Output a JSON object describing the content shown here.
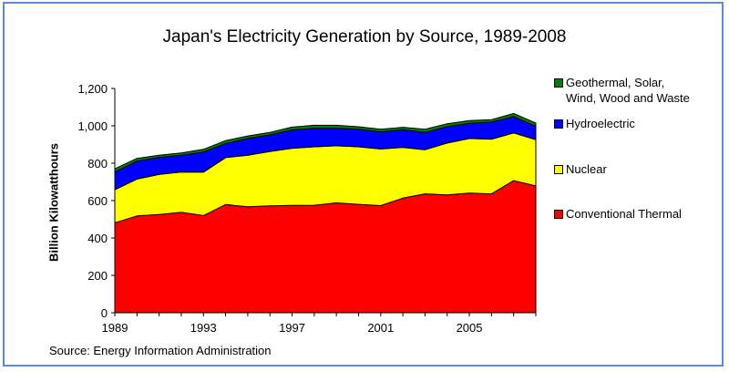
{
  "frame_color": "#5b8bd0",
  "chart_data": {
    "type": "area",
    "stacked": true,
    "title": "Japan's Electricity Generation by Source, 1989-2008",
    "xlabel": "",
    "ylabel": "Billion Kilowatthours",
    "source": "Source: Energy Information Administration",
    "x": [
      1989,
      1990,
      1991,
      1992,
      1993,
      1994,
      1995,
      1996,
      1997,
      1998,
      1999,
      2000,
      2001,
      2002,
      2003,
      2004,
      2005,
      2006,
      2007,
      2008
    ],
    "xlim": [
      1989,
      2008
    ],
    "xticks": [
      1989,
      1990,
      1991,
      1992,
      1993,
      1994,
      1995,
      1996,
      1997,
      1998,
      1999,
      2000,
      2001,
      2002,
      2003,
      2004,
      2005,
      2006,
      2007,
      2008
    ],
    "xtick_labels": [
      "1989",
      "1993",
      "1997",
      "2001",
      "2005"
    ],
    "xtick_label_years": [
      1989,
      1993,
      1997,
      2001,
      2005
    ],
    "ylim": [
      0,
      1200
    ],
    "yticks": [
      0,
      200,
      400,
      600,
      800,
      1000,
      1200
    ],
    "ytick_labels": [
      "0",
      "200",
      "400",
      "600",
      "800",
      "1,000",
      "1,200"
    ],
    "grid": false,
    "legend_position": "right",
    "series": [
      {
        "name": "Conventional Thermal",
        "color": "#ff0000",
        "values": [
          481,
          518,
          526,
          537,
          520,
          579,
          567,
          572,
          574,
          575,
          588,
          580,
          573,
          613,
          636,
          630,
          640,
          636,
          707,
          679
        ]
      },
      {
        "name": "Nuclear",
        "color": "#ffff00",
        "values": [
          177,
          197,
          214,
          216,
          232,
          251,
          276,
          291,
          306,
          313,
          305,
          308,
          303,
          272,
          236,
          278,
          292,
          293,
          255,
          247
        ]
      },
      {
        "name": "Hydroelectric",
        "color": "#0000ff",
        "values": [
          94,
          96,
          91,
          89,
          108,
          75,
          89,
          88,
          98,
          99,
          94,
          94,
          92,
          94,
          93,
          87,
          81,
          91,
          87,
          72
        ]
      },
      {
        "name": "Geothermal, Solar, Wind, Wood and Waste",
        "name_lines": [
          "Geothermal, Solar,",
          "Wind, Wood and Waste"
        ],
        "color": "#008000",
        "values": [
          18,
          15,
          12,
          13,
          14,
          16,
          14,
          14,
          15,
          16,
          16,
          13,
          14,
          13,
          17,
          16,
          15,
          13,
          17,
          17
        ]
      }
    ],
    "legend_order": [
      3,
      2,
      1,
      0
    ]
  }
}
